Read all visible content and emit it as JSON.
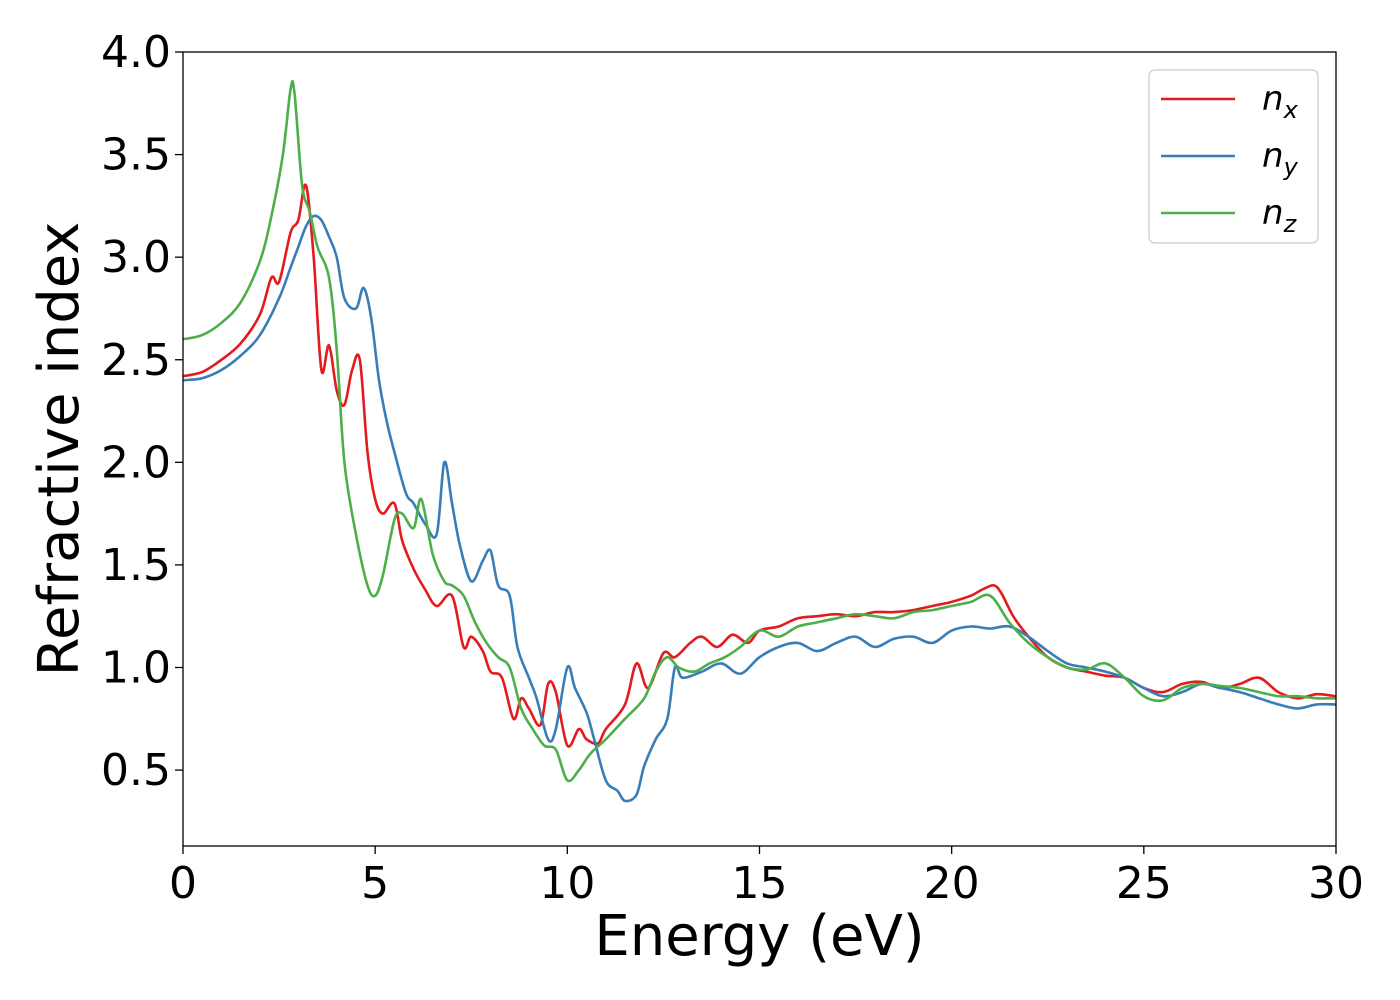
{
  "chart_data": {
    "type": "line",
    "title": "",
    "xlabel": "Energy (eV)",
    "ylabel": "Refractive index",
    "xlim": [
      0,
      30
    ],
    "ylim": [
      0.13,
      4.0
    ],
    "xticks": [
      "0",
      "5",
      "10",
      "15",
      "20",
      "25",
      "30"
    ],
    "yticks": [
      "0.5",
      "1.0",
      "1.5",
      "2.0",
      "2.5",
      "3.0",
      "3.5",
      "4.0"
    ],
    "grid": false,
    "legend_position": "top-right",
    "series": [
      {
        "name": "n_x",
        "label_main": "n",
        "label_sub": "x",
        "color": "#e41a1c",
        "x": [
          0,
          0.5,
          1.0,
          1.5,
          2.0,
          2.3,
          2.5,
          2.8,
          3.0,
          3.2,
          3.4,
          3.6,
          3.8,
          4.0,
          4.2,
          4.4,
          4.6,
          4.8,
          5.0,
          5.2,
          5.5,
          5.7,
          6.0,
          6.3,
          6.6,
          7.0,
          7.3,
          7.5,
          7.8,
          8.0,
          8.3,
          8.6,
          8.8,
          9.0,
          9.3,
          9.5,
          9.7,
          10.0,
          10.3,
          10.5,
          10.8,
          11.0,
          11.5,
          11.8,
          12.1,
          12.5,
          12.8,
          13.2,
          13.5,
          13.9,
          14.3,
          14.7,
          15.0,
          15.5,
          16.0,
          16.5,
          17.0,
          17.5,
          18.0,
          18.5,
          19.0,
          19.5,
          20.0,
          20.5,
          20.8,
          21.1,
          21.3,
          21.6,
          22.0,
          22.5,
          23.0,
          23.5,
          24.0,
          24.5,
          25.0,
          25.5,
          26.0,
          26.5,
          27.0,
          27.5,
          28.0,
          28.5,
          29.0,
          29.5,
          30.0
        ],
        "y": [
          2.42,
          2.44,
          2.5,
          2.58,
          2.72,
          2.9,
          2.88,
          3.12,
          3.18,
          3.35,
          3.0,
          2.45,
          2.57,
          2.35,
          2.28,
          2.45,
          2.5,
          2.05,
          1.82,
          1.75,
          1.8,
          1.62,
          1.48,
          1.38,
          1.3,
          1.35,
          1.1,
          1.15,
          1.08,
          0.98,
          0.95,
          0.75,
          0.85,
          0.8,
          0.72,
          0.92,
          0.88,
          0.62,
          0.7,
          0.65,
          0.63,
          0.7,
          0.82,
          1.02,
          0.9,
          1.07,
          1.05,
          1.12,
          1.15,
          1.1,
          1.16,
          1.12,
          1.18,
          1.2,
          1.24,
          1.25,
          1.26,
          1.25,
          1.27,
          1.27,
          1.28,
          1.3,
          1.32,
          1.35,
          1.38,
          1.4,
          1.36,
          1.25,
          1.15,
          1.05,
          1.0,
          0.98,
          0.96,
          0.95,
          0.9,
          0.88,
          0.92,
          0.93,
          0.9,
          0.92,
          0.95,
          0.88,
          0.85,
          0.87,
          0.86
        ]
      },
      {
        "name": "n_y",
        "label_main": "n",
        "label_sub": "y",
        "color": "#377eb8",
        "x": [
          0,
          0.5,
          1.0,
          1.5,
          2.0,
          2.5,
          2.8,
          3.0,
          3.2,
          3.4,
          3.6,
          3.8,
          4.0,
          4.2,
          4.5,
          4.7,
          4.9,
          5.1,
          5.3,
          5.5,
          5.8,
          6.0,
          6.3,
          6.6,
          6.8,
          7.0,
          7.2,
          7.5,
          7.8,
          8.0,
          8.2,
          8.5,
          8.7,
          9.0,
          9.2,
          9.5,
          9.7,
          10.0,
          10.2,
          10.5,
          10.7,
          11.0,
          11.3,
          11.5,
          11.8,
          12.0,
          12.3,
          12.6,
          12.8,
          13.0,
          13.5,
          14.0,
          14.5,
          15.0,
          15.5,
          16.0,
          16.5,
          17.0,
          17.5,
          18.0,
          18.5,
          19.0,
          19.5,
          20.0,
          20.5,
          21.0,
          21.5,
          22.0,
          22.5,
          23.0,
          23.5,
          24.0,
          24.5,
          25.0,
          25.5,
          26.0,
          26.5,
          27.0,
          27.5,
          28.0,
          28.5,
          29.0,
          29.5,
          30.0
        ],
        "y": [
          2.4,
          2.41,
          2.45,
          2.52,
          2.62,
          2.8,
          2.95,
          3.05,
          3.15,
          3.2,
          3.18,
          3.1,
          3.0,
          2.8,
          2.75,
          2.85,
          2.7,
          2.4,
          2.2,
          2.05,
          1.85,
          1.8,
          1.7,
          1.65,
          2.0,
          1.8,
          1.6,
          1.42,
          1.52,
          1.57,
          1.4,
          1.35,
          1.1,
          0.95,
          0.85,
          0.65,
          0.7,
          1.0,
          0.9,
          0.78,
          0.65,
          0.45,
          0.4,
          0.35,
          0.38,
          0.52,
          0.65,
          0.75,
          1.0,
          0.95,
          0.98,
          1.02,
          0.97,
          1.05,
          1.1,
          1.12,
          1.08,
          1.12,
          1.15,
          1.1,
          1.14,
          1.15,
          1.12,
          1.18,
          1.2,
          1.19,
          1.2,
          1.15,
          1.08,
          1.02,
          1.0,
          0.98,
          0.95,
          0.9,
          0.86,
          0.88,
          0.92,
          0.9,
          0.88,
          0.85,
          0.82,
          0.8,
          0.82,
          0.82
        ]
      },
      {
        "name": "n_z",
        "label_main": "n",
        "label_sub": "z",
        "color": "#4daf4a",
        "x": [
          0,
          0.5,
          1.0,
          1.5,
          2.0,
          2.3,
          2.6,
          2.8,
          2.9,
          3.1,
          3.3,
          3.5,
          3.8,
          4.0,
          4.2,
          4.5,
          4.8,
          5.0,
          5.2,
          5.5,
          5.7,
          6.0,
          6.2,
          6.5,
          6.8,
          7.0,
          7.3,
          7.6,
          7.9,
          8.2,
          8.5,
          8.8,
          9.1,
          9.4,
          9.7,
          10.0,
          10.3,
          10.6,
          11.0,
          11.5,
          12.0,
          12.3,
          12.6,
          12.9,
          13.3,
          13.7,
          14.1,
          14.5,
          15.0,
          15.5,
          16.0,
          16.5,
          17.0,
          17.5,
          18.0,
          18.5,
          19.0,
          19.5,
          20.0,
          20.5,
          21.0,
          21.5,
          22.0,
          22.5,
          23.0,
          23.5,
          24.0,
          24.5,
          25.0,
          25.5,
          26.0,
          26.5,
          27.0,
          27.5,
          28.0,
          28.5,
          29.0,
          29.5,
          30.0
        ],
        "y": [
          2.6,
          2.62,
          2.68,
          2.78,
          2.98,
          3.2,
          3.5,
          3.82,
          3.8,
          3.35,
          3.22,
          3.05,
          2.9,
          2.55,
          2.0,
          1.65,
          1.4,
          1.35,
          1.45,
          1.72,
          1.75,
          1.68,
          1.82,
          1.55,
          1.42,
          1.4,
          1.35,
          1.22,
          1.12,
          1.05,
          1.0,
          0.8,
          0.7,
          0.62,
          0.6,
          0.45,
          0.5,
          0.58,
          0.65,
          0.75,
          0.85,
          0.98,
          1.05,
          1.0,
          0.98,
          1.02,
          1.05,
          1.1,
          1.18,
          1.15,
          1.2,
          1.22,
          1.24,
          1.26,
          1.25,
          1.24,
          1.27,
          1.28,
          1.3,
          1.32,
          1.35,
          1.22,
          1.12,
          1.05,
          1.0,
          0.99,
          1.02,
          0.95,
          0.86,
          0.84,
          0.9,
          0.92,
          0.91,
          0.9,
          0.88,
          0.86,
          0.86,
          0.85,
          0.85
        ]
      }
    ]
  }
}
